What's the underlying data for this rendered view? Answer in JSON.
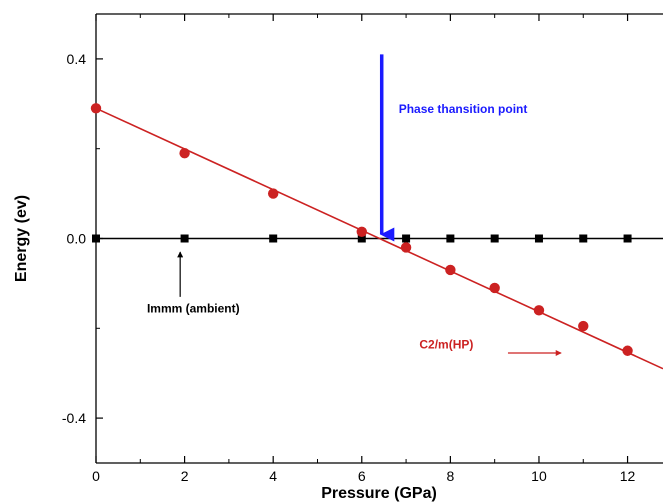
{
  "chart_data": {
    "type": "line",
    "title": "",
    "xlabel": "Pressure (GPa)",
    "ylabel": "Energy (ev)",
    "xlim": [
      0,
      12.8
    ],
    "ylim": [
      -0.5,
      0.5
    ],
    "x_ticks": [
      0,
      2,
      4,
      6,
      8,
      10,
      12
    ],
    "x_tick_labels": [
      "0",
      "2",
      "4",
      "6",
      "8",
      "10",
      "12"
    ],
    "y_ticks": [
      -0.4,
      0.0,
      0.4
    ],
    "y_tick_labels": [
      "-0.4",
      "0.0",
      "0.4"
    ],
    "grid": false,
    "series": [
      {
        "name": "Immm (ambient)",
        "color": "#000000",
        "marker": "square",
        "x": [
          0,
          2,
          4,
          6,
          7,
          8,
          9,
          10,
          11,
          12
        ],
        "y": [
          0,
          0,
          0,
          0,
          0,
          0,
          0,
          0,
          0,
          0
        ],
        "line_x": [
          0,
          12.8
        ],
        "line_y": [
          0,
          0
        ]
      },
      {
        "name": "C2/m(HP)",
        "color": "#cc2222",
        "marker": "circle",
        "x": [
          0,
          2,
          4,
          6,
          7,
          8,
          9,
          10,
          11,
          12
        ],
        "y": [
          0.29,
          0.19,
          0.1,
          0.015,
          -0.02,
          -0.07,
          -0.11,
          -0.16,
          -0.195,
          -0.25
        ],
        "line_x": [
          0,
          12.8
        ],
        "line_y": [
          0.29,
          -0.29
        ]
      }
    ],
    "annotations": [
      {
        "text": "Phase thansition point",
        "color": "#1a1aff",
        "arrow_x": 6.45,
        "arrow_y_from": 0.41,
        "arrow_y_to": 0.0
      },
      {
        "text": "Immm (ambient)",
        "color": "#000000",
        "arrow_x": 1.9,
        "arrow_y_from": -0.13,
        "arrow_y_to": -0.03
      },
      {
        "text": "C2/m(HP)",
        "color": "#cc2222",
        "arrow_x_from": 9.3,
        "arrow_x_to": 10.5,
        "arrow_y": -0.255
      }
    ]
  }
}
